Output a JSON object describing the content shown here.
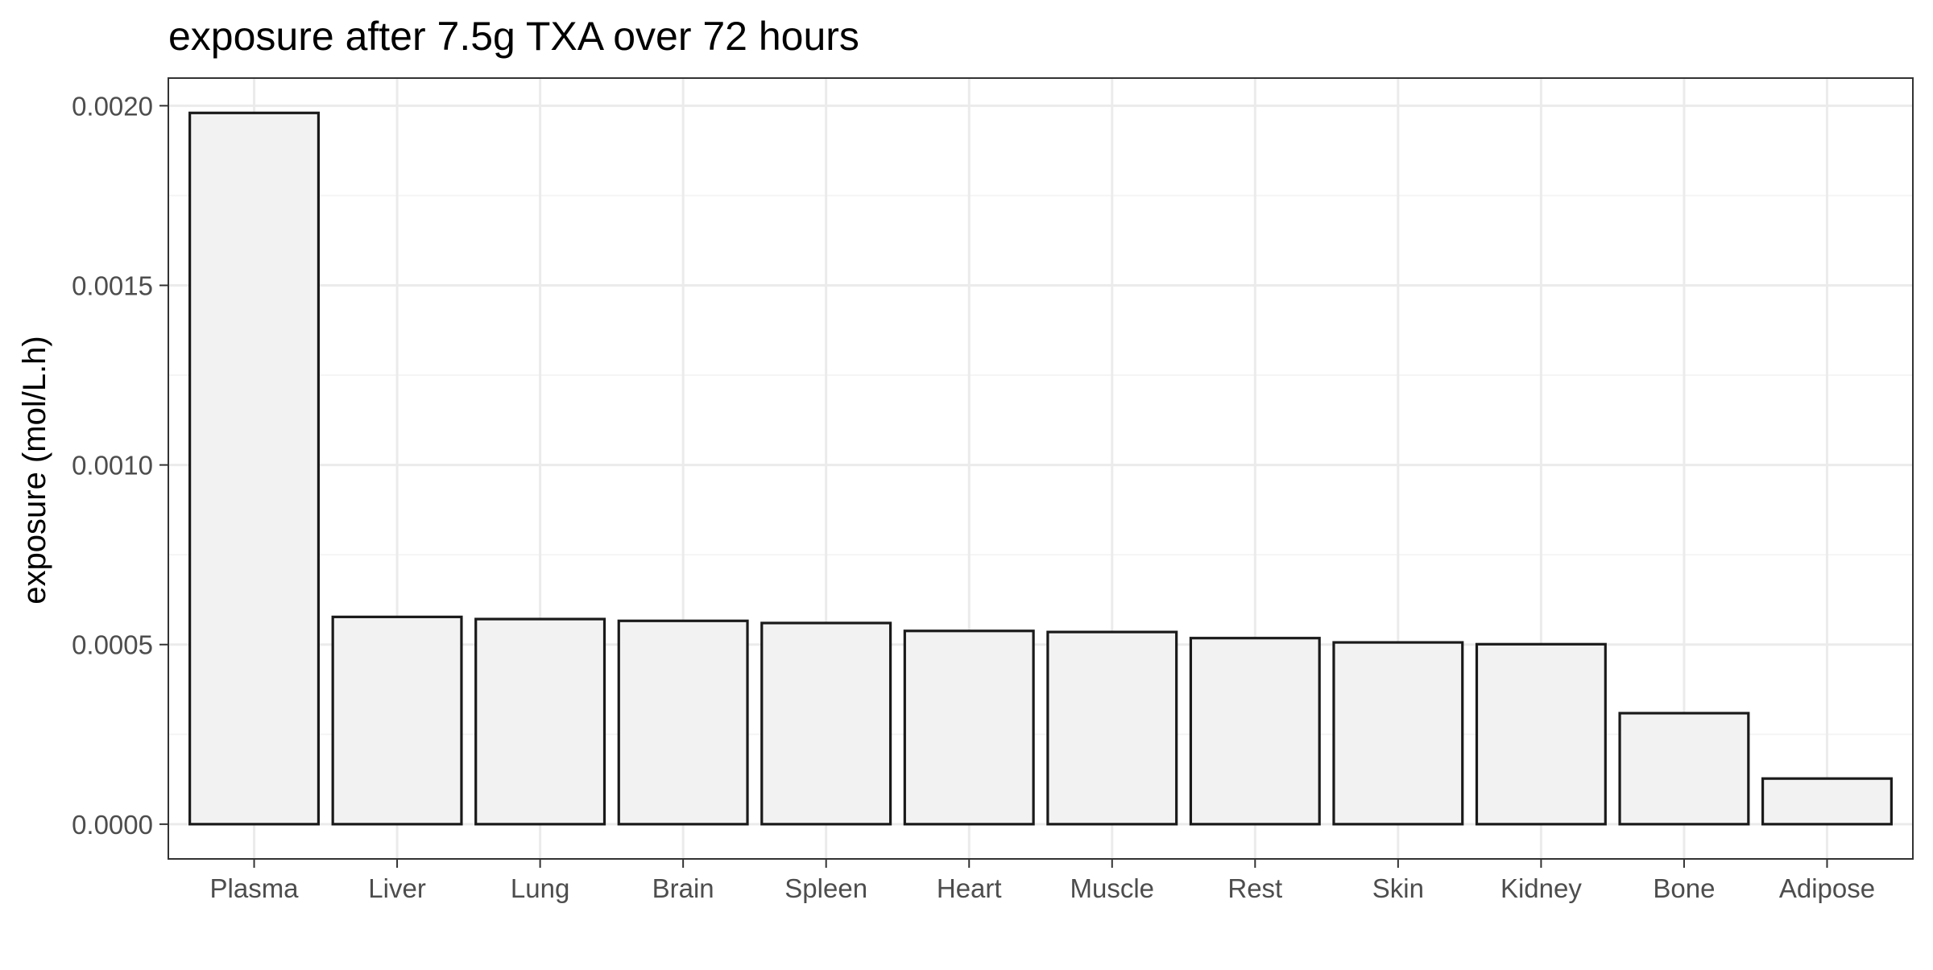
{
  "chart_data": {
    "type": "bar",
    "title": "exposure after 7.5g TXA over 72 hours",
    "xlabel": "",
    "ylabel": "exposure (mol/L.h)",
    "categories": [
      "Plasma",
      "Liver",
      "Lung",
      "Brain",
      "Spleen",
      "Heart",
      "Muscle",
      "Rest",
      "Skin",
      "Kidney",
      "Bone",
      "Adipose"
    ],
    "values": [
      0.00198,
      0.000577,
      0.000571,
      0.000566,
      0.00056,
      0.000538,
      0.000535,
      0.000518,
      0.000506,
      0.000501,
      0.000309,
      0.000127
    ],
    "ylim": [
      -9.67e-05,
      0.002077
    ],
    "yticks": [
      0.0,
      0.0005,
      0.001,
      0.0015,
      0.002
    ],
    "ytick_labels": [
      "0.0000",
      "0.0005",
      "0.0010",
      "0.0015",
      "0.0020"
    ],
    "grid": true,
    "legend": "none",
    "colors": {
      "bar_fill": "#f2f2f2",
      "bar_stroke": "#1a1a1a",
      "grid_major": "#ebebeb",
      "grid_minor": "#f5f5f5",
      "panel_border": "#333333",
      "tick": "#333333"
    }
  }
}
